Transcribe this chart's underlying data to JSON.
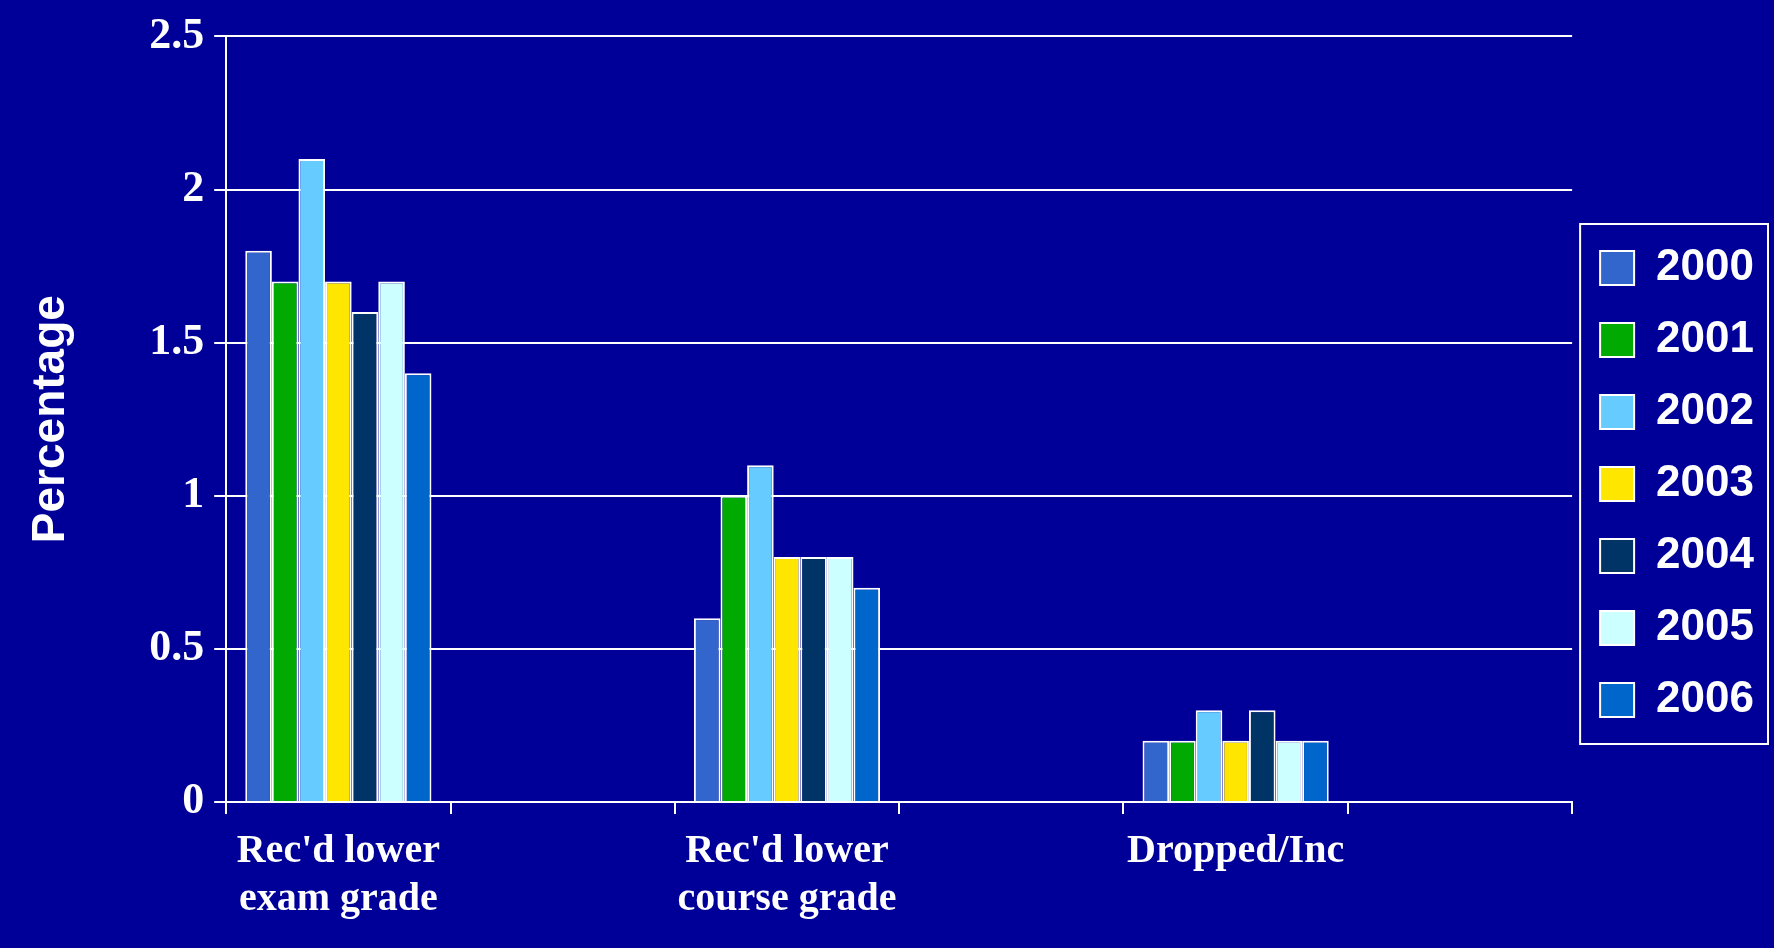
{
  "chart_data": {
    "type": "bar",
    "ylabel": "Percentage",
    "categories": [
      "Rec'd lower exam grade",
      null,
      "Rec'd lower course grade",
      null,
      "Dropped/Inc",
      null
    ],
    "series": [
      {
        "name": "2000",
        "color": "#3366cc",
        "values": [
          1.8,
          null,
          0.6,
          null,
          0.2,
          null
        ]
      },
      {
        "name": "2001",
        "color": "#00aa00",
        "values": [
          1.7,
          null,
          1.0,
          null,
          0.2,
          null
        ]
      },
      {
        "name": "2002",
        "color": "#66ccff",
        "values": [
          2.1,
          null,
          1.1,
          null,
          0.3,
          null
        ]
      },
      {
        "name": "2003",
        "color": "#ffe600",
        "values": [
          1.7,
          null,
          0.8,
          null,
          0.2,
          null
        ]
      },
      {
        "name": "2004",
        "color": "#003366",
        "values": [
          1.6,
          null,
          0.8,
          null,
          0.3,
          null
        ]
      },
      {
        "name": "2005",
        "color": "#ccffff",
        "values": [
          1.7,
          null,
          0.8,
          null,
          0.2,
          null
        ]
      },
      {
        "name": "2006",
        "color": "#0066cc",
        "values": [
          1.4,
          null,
          0.7,
          null,
          0.2,
          null
        ]
      }
    ],
    "ylim": [
      0,
      2.5
    ],
    "yticks": [
      0,
      0.5,
      1,
      1.5,
      2,
      2.5
    ],
    "grid": "y",
    "legend": "right"
  }
}
